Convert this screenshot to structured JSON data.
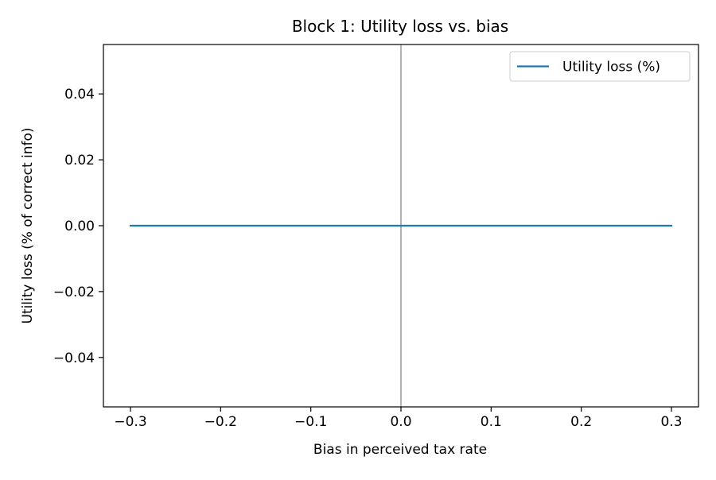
{
  "chart_data": {
    "type": "line",
    "title": "Block 1: Utility loss vs. bias",
    "xlabel": "Bias in perceived tax rate",
    "ylabel": "Utility loss (% of correct info)",
    "xlim": [
      -0.33,
      0.33
    ],
    "ylim": [
      -0.055,
      0.055
    ],
    "x_ticks": [
      -0.3,
      -0.2,
      -0.1,
      0.0,
      0.1,
      0.2,
      0.3
    ],
    "x_tick_labels": [
      "−0.3",
      "−0.2",
      "−0.1",
      "0.0",
      "0.1",
      "0.2",
      "0.3"
    ],
    "y_ticks": [
      0.04,
      0.02,
      0.0,
      -0.02,
      -0.04
    ],
    "y_tick_labels": [
      "0.04",
      "0.02",
      "0.00",
      "−0.02",
      "−0.04"
    ],
    "grid": false,
    "reference_line": {
      "axis": "x",
      "value": 0.0,
      "color": "#808080"
    },
    "legend_position": "top-right",
    "series": [
      {
        "name": "Utility loss (%)",
        "color": "#1f77b4",
        "x": [
          -0.3,
          -0.2,
          -0.1,
          0.0,
          0.1,
          0.2,
          0.3
        ],
        "y": [
          0,
          0,
          0,
          0,
          0,
          0,
          0
        ]
      }
    ]
  }
}
